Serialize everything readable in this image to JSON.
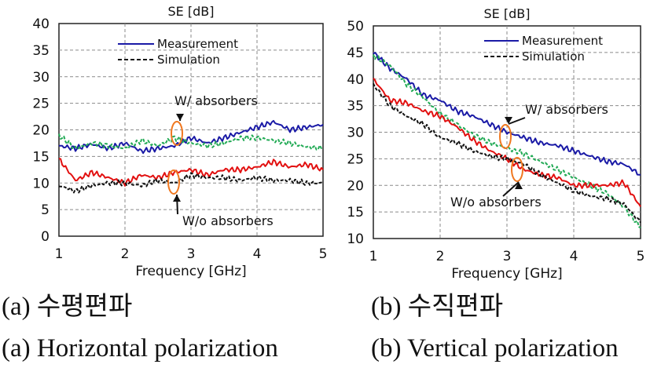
{
  "chart_data": [
    {
      "type": "line",
      "title": "SE [dB]",
      "xlabel": "Frequency [GHz]",
      "ylabel": "",
      "xlim": [
        1,
        5
      ],
      "ylim": [
        0,
        40
      ],
      "xticks": [
        "1",
        "2",
        "3",
        "4",
        "5"
      ],
      "yticks": [
        "0",
        "5",
        "10",
        "15",
        "20",
        "25",
        "30",
        "35",
        "40"
      ],
      "grid": "dashed",
      "legend": {
        "position": "top-center",
        "entries": [
          "Measurement",
          "Simulation"
        ]
      },
      "series": [
        {
          "name": "W/ absorbers (Measurement)",
          "color": "#1a1aa6",
          "style": "solid",
          "x": [
            1.0,
            1.25,
            1.5,
            1.75,
            2.0,
            2.25,
            2.5,
            2.75,
            3.0,
            3.25,
            3.5,
            3.75,
            4.0,
            4.25,
            4.5,
            4.75,
            5.0
          ],
          "y": [
            17.0,
            16.5,
            17.3,
            16.5,
            17.5,
            16.0,
            16.5,
            17.0,
            18.5,
            17.5,
            18.5,
            19.5,
            20.5,
            21.5,
            20.0,
            20.5,
            21.0
          ]
        },
        {
          "name": "W/ absorbers (Simulation)",
          "color": "#22aa55",
          "style": "dashed",
          "x": [
            1.0,
            1.25,
            1.5,
            1.75,
            2.0,
            2.25,
            2.5,
            2.75,
            3.0,
            3.25,
            3.5,
            3.75,
            4.0,
            4.25,
            4.5,
            4.75,
            5.0
          ],
          "y": [
            19.0,
            16.5,
            17.5,
            17.0,
            16.5,
            18.0,
            17.0,
            18.5,
            17.5,
            17.0,
            17.5,
            18.5,
            18.5,
            18.0,
            17.5,
            16.8,
            16.5
          ]
        },
        {
          "name": "W/o absorbers (Measurement)",
          "color": "#e21010",
          "style": "solid",
          "x": [
            1.0,
            1.25,
            1.5,
            1.75,
            2.0,
            2.25,
            2.5,
            2.75,
            3.0,
            3.25,
            3.5,
            3.75,
            4.0,
            4.25,
            4.5,
            4.75,
            5.0
          ],
          "y": [
            14.5,
            10.5,
            12.0,
            11.0,
            10.0,
            11.5,
            11.0,
            12.0,
            12.5,
            11.5,
            12.5,
            12.5,
            13.0,
            14.0,
            13.0,
            13.5,
            12.5
          ]
        },
        {
          "name": "W/o absorbers (Simulation)",
          "color": "#111111",
          "style": "dashed",
          "x": [
            1.0,
            1.25,
            1.5,
            1.75,
            2.0,
            2.25,
            2.5,
            2.75,
            3.0,
            3.25,
            3.5,
            3.75,
            4.0,
            4.25,
            4.5,
            4.75,
            5.0
          ],
          "y": [
            9.5,
            8.5,
            9.5,
            10.0,
            10.0,
            9.5,
            10.5,
            10.0,
            11.5,
            11.0,
            11.0,
            10.5,
            11.0,
            10.5,
            10.5,
            10.0,
            10.0
          ]
        }
      ],
      "annotations": [
        {
          "text": "W/ absorbers",
          "x": 2.9,
          "y": 18.0
        },
        {
          "text": "W/o absorbers",
          "x": 2.75,
          "y": 10.0
        }
      ]
    },
    {
      "type": "line",
      "title": "SE [dB]",
      "xlabel": "Frequency [GHz]",
      "ylabel": "",
      "xlim": [
        1,
        5
      ],
      "ylim": [
        10,
        50
      ],
      "xticks": [
        "1",
        "2",
        "3",
        "4",
        "5"
      ],
      "yticks": [
        "10",
        "15",
        "20",
        "25",
        "30",
        "35",
        "40",
        "45",
        "50"
      ],
      "grid": "dashed",
      "legend": {
        "position": "top-right",
        "entries": [
          "Measurement",
          "Simulation"
        ]
      },
      "series": [
        {
          "name": "W/ absorbers (Measurement)",
          "color": "#1a1aa6",
          "style": "solid",
          "x": [
            1.0,
            1.25,
            1.5,
            1.75,
            2.0,
            2.25,
            2.5,
            2.75,
            3.0,
            3.25,
            3.5,
            3.75,
            4.0,
            4.25,
            4.5,
            4.75,
            5.0
          ],
          "y": [
            45.0,
            42.0,
            40.0,
            37.0,
            36.0,
            34.0,
            33.0,
            31.5,
            30.0,
            29.0,
            28.0,
            27.5,
            26.5,
            25.5,
            24.5,
            24.0,
            22.0
          ]
        },
        {
          "name": "W/ absorbers (Simulation)",
          "color": "#22aa55",
          "style": "dashed",
          "x": [
            1.0,
            1.25,
            1.5,
            1.75,
            2.0,
            2.25,
            2.5,
            2.75,
            3.0,
            3.25,
            3.5,
            3.75,
            4.0,
            4.25,
            4.5,
            4.75,
            5.0
          ],
          "y": [
            44.5,
            42.5,
            39.0,
            36.5,
            33.5,
            31.5,
            29.5,
            28.0,
            27.0,
            26.0,
            24.5,
            23.0,
            21.5,
            20.0,
            18.5,
            16.0,
            12.0
          ]
        },
        {
          "name": "W/o absorbers (Measurement)",
          "color": "#e21010",
          "style": "solid",
          "x": [
            1.0,
            1.25,
            1.5,
            1.75,
            2.0,
            2.25,
            2.5,
            2.75,
            3.0,
            3.25,
            3.5,
            3.75,
            4.0,
            4.25,
            4.5,
            4.75,
            5.0
          ],
          "y": [
            40.0,
            36.0,
            35.5,
            34.0,
            33.0,
            31.0,
            28.5,
            26.5,
            25.0,
            23.0,
            22.0,
            21.5,
            20.0,
            20.0,
            20.0,
            20.5,
            16.0
          ]
        },
        {
          "name": "W/o absorbers (Simulation)",
          "color": "#111111",
          "style": "dashed",
          "x": [
            1.0,
            1.25,
            1.5,
            1.75,
            2.0,
            2.25,
            2.5,
            2.75,
            3.0,
            3.25,
            3.5,
            3.75,
            4.0,
            4.25,
            4.5,
            4.75,
            5.0
          ],
          "y": [
            39.0,
            35.0,
            33.0,
            31.5,
            29.0,
            28.0,
            26.5,
            25.5,
            25.0,
            24.0,
            22.0,
            20.5,
            19.0,
            18.0,
            17.5,
            16.5,
            13.0
          ]
        }
      ],
      "annotations": [
        {
          "text": "W/ absorbers",
          "x": 3.0,
          "y": 29.0
        },
        {
          "text": "W/o absorbers",
          "x": 3.15,
          "y": 24.0
        }
      ]
    }
  ],
  "captions": {
    "left_korean": "(a) 수평편파",
    "left_english": "(a) Horizontal polarization",
    "right_korean": "(b) 수직편파",
    "right_english": "(b) Vertical polarization"
  }
}
